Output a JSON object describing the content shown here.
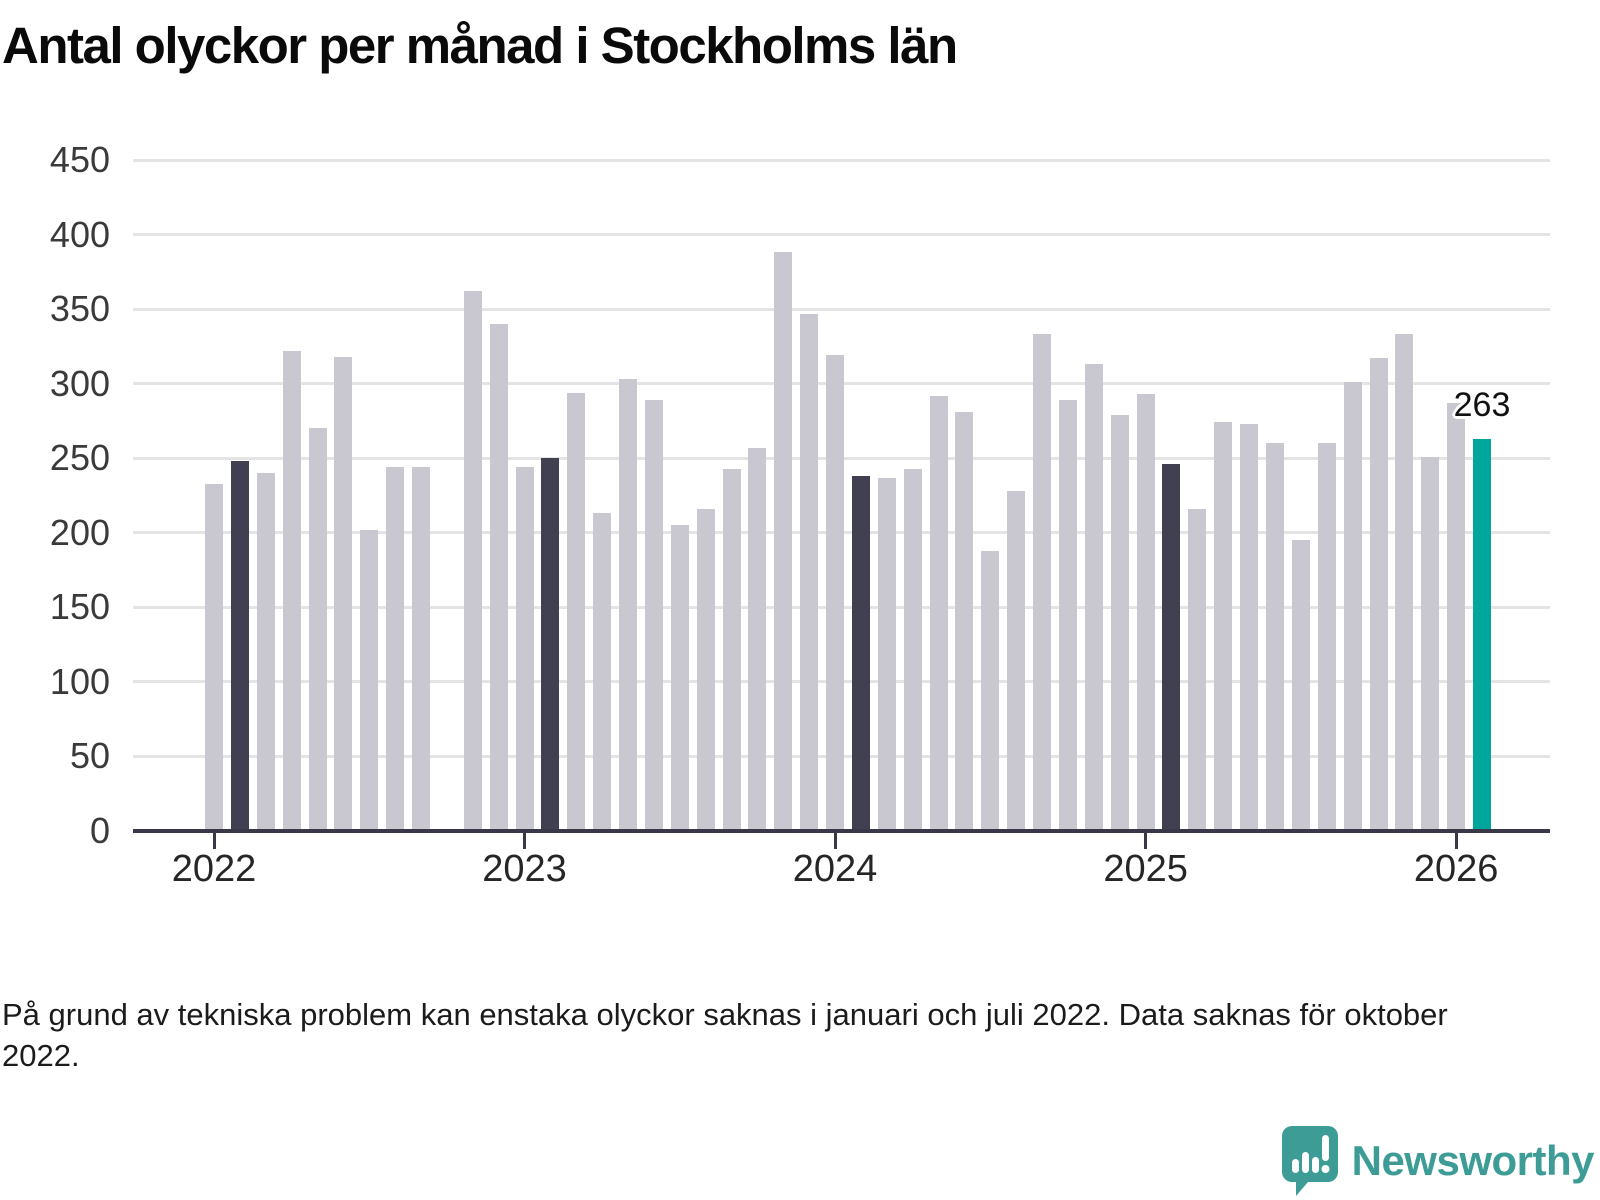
{
  "title": "Antal olyckor per månad i Stockholms län",
  "footnote": "På grund av tekniska problem kan enstaka olyckor saknas i januari och juli 2022. Data saknas för oktober 2022.",
  "logo": {
    "text": "Newsworthy"
  },
  "chart_data": {
    "type": "bar",
    "title": "Antal olyckor per månad i Stockholms län",
    "xlabel": "",
    "ylabel": "",
    "ylim": [
      0,
      450
    ],
    "y_ticks": [
      0,
      50,
      100,
      150,
      200,
      250,
      300,
      350,
      400,
      450
    ],
    "x_tick_years": [
      "2022",
      "2023",
      "2024",
      "2025",
      "2026"
    ],
    "grid": "horizontal",
    "legend": "none",
    "missing_months": [
      "2022-10"
    ],
    "annotation": {
      "text": "263",
      "month": "2026-02"
    },
    "colors": {
      "bar_default": "#c9c8d1",
      "bar_february": "#414051",
      "bar_current": "#00a69c",
      "axis": "#393848",
      "gridline": "#e4e4e7",
      "logo_teal": "#3d9c95"
    },
    "bars": [
      {
        "month": "2022-01",
        "value": 233,
        "style": "normal"
      },
      {
        "month": "2022-02",
        "value": 248,
        "style": "february"
      },
      {
        "month": "2022-03",
        "value": 240,
        "style": "normal"
      },
      {
        "month": "2022-04",
        "value": 322,
        "style": "normal"
      },
      {
        "month": "2022-05",
        "value": 270,
        "style": "normal"
      },
      {
        "month": "2022-06",
        "value": 318,
        "style": "normal"
      },
      {
        "month": "2022-07",
        "value": 202,
        "style": "normal"
      },
      {
        "month": "2022-08",
        "value": 244,
        "style": "normal"
      },
      {
        "month": "2022-09",
        "value": 244,
        "style": "normal"
      },
      {
        "month": "2022-11",
        "value": 362,
        "style": "normal"
      },
      {
        "month": "2022-12",
        "value": 340,
        "style": "normal"
      },
      {
        "month": "2023-01",
        "value": 244,
        "style": "normal"
      },
      {
        "month": "2023-02",
        "value": 250,
        "style": "february"
      },
      {
        "month": "2023-03",
        "value": 294,
        "style": "normal"
      },
      {
        "month": "2023-04",
        "value": 213,
        "style": "normal"
      },
      {
        "month": "2023-05",
        "value": 303,
        "style": "normal"
      },
      {
        "month": "2023-06",
        "value": 289,
        "style": "normal"
      },
      {
        "month": "2023-07",
        "value": 205,
        "style": "normal"
      },
      {
        "month": "2023-08",
        "value": 216,
        "style": "normal"
      },
      {
        "month": "2023-09",
        "value": 243,
        "style": "normal"
      },
      {
        "month": "2023-10",
        "value": 257,
        "style": "normal"
      },
      {
        "month": "2023-11",
        "value": 388,
        "style": "normal"
      },
      {
        "month": "2023-12",
        "value": 347,
        "style": "normal"
      },
      {
        "month": "2024-01",
        "value": 319,
        "style": "normal"
      },
      {
        "month": "2024-02",
        "value": 238,
        "style": "february"
      },
      {
        "month": "2024-03",
        "value": 237,
        "style": "normal"
      },
      {
        "month": "2024-04",
        "value": 243,
        "style": "normal"
      },
      {
        "month": "2024-05",
        "value": 292,
        "style": "normal"
      },
      {
        "month": "2024-06",
        "value": 281,
        "style": "normal"
      },
      {
        "month": "2024-07",
        "value": 188,
        "style": "normal"
      },
      {
        "month": "2024-08",
        "value": 228,
        "style": "normal"
      },
      {
        "month": "2024-09",
        "value": 333,
        "style": "normal"
      },
      {
        "month": "2024-10",
        "value": 289,
        "style": "normal"
      },
      {
        "month": "2024-11",
        "value": 313,
        "style": "normal"
      },
      {
        "month": "2024-12",
        "value": 279,
        "style": "normal"
      },
      {
        "month": "2025-01",
        "value": 293,
        "style": "normal"
      },
      {
        "month": "2025-02",
        "value": 246,
        "style": "february"
      },
      {
        "month": "2025-03",
        "value": 216,
        "style": "normal"
      },
      {
        "month": "2025-04",
        "value": 274,
        "style": "normal"
      },
      {
        "month": "2025-05",
        "value": 273,
        "style": "normal"
      },
      {
        "month": "2025-06",
        "value": 260,
        "style": "normal"
      },
      {
        "month": "2025-07",
        "value": 195,
        "style": "normal"
      },
      {
        "month": "2025-08",
        "value": 260,
        "style": "normal"
      },
      {
        "month": "2025-09",
        "value": 301,
        "style": "normal"
      },
      {
        "month": "2025-10",
        "value": 317,
        "style": "normal"
      },
      {
        "month": "2025-11",
        "value": 333,
        "style": "normal"
      },
      {
        "month": "2025-12",
        "value": 251,
        "style": "normal"
      },
      {
        "month": "2026-01",
        "value": 287,
        "style": "normal"
      },
      {
        "month": "2026-02",
        "value": 263,
        "style": "current"
      }
    ]
  }
}
